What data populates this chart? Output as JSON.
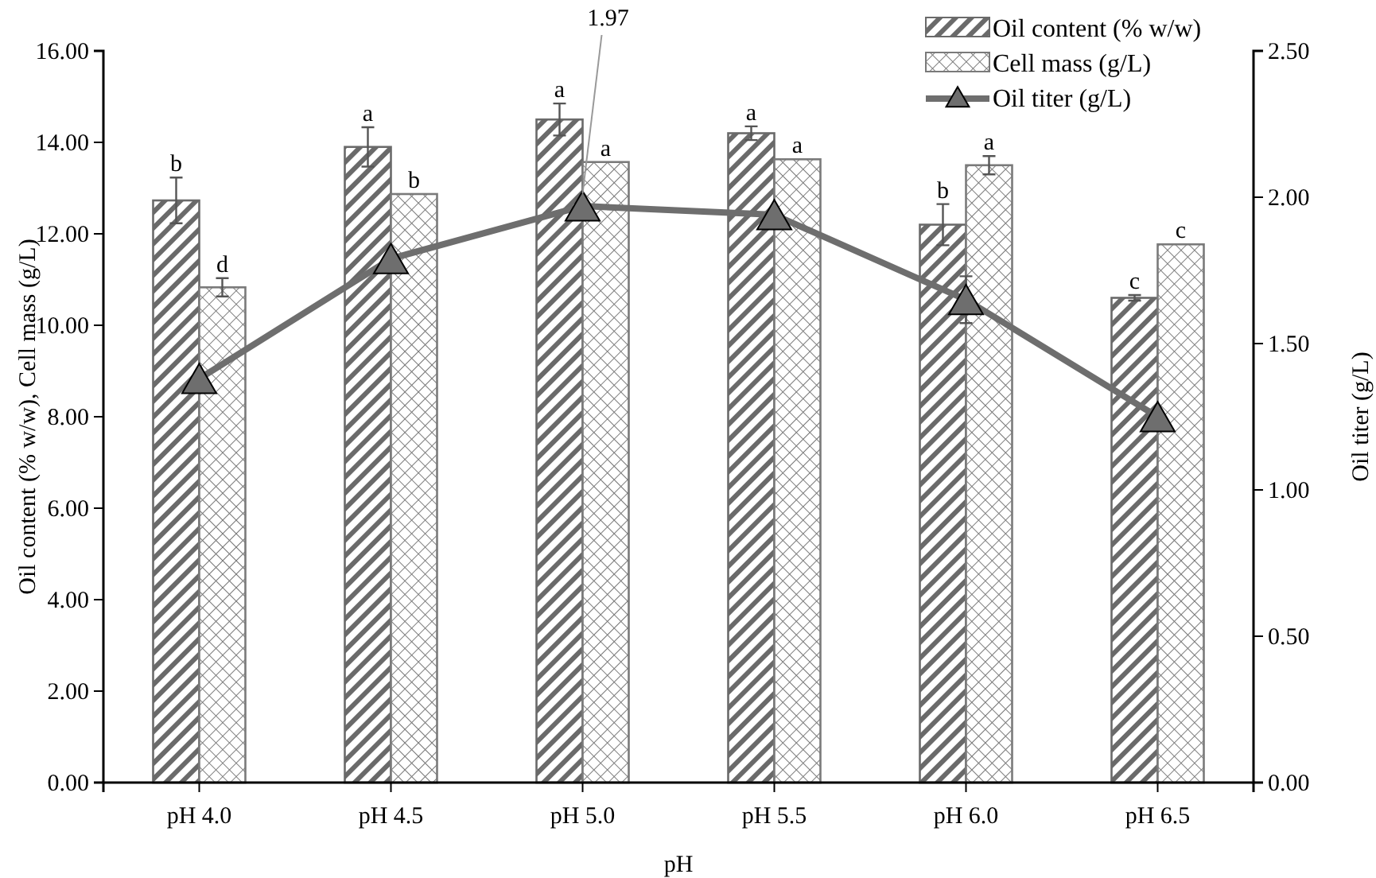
{
  "chart_data": {
    "type": "bar",
    "xlabel": "pH",
    "ylabel": "Oil content (% w/w), Cell mass (g/L)",
    "y2label": "Oil titer (g/L)",
    "categories": [
      "pH 4.0",
      "pH 4.5",
      "pH 5.0",
      "pH 5.5",
      "pH 6.0",
      "pH 6.5"
    ],
    "series": [
      {
        "name": "Oil content (% w/w)",
        "color": "#6a6a6a",
        "values": [
          12.73,
          13.9,
          14.5,
          14.2,
          12.2,
          10.6
        ],
        "errors": [
          0.5,
          0.43,
          0.35,
          0.15,
          0.45,
          0.06
        ],
        "value_labels": [
          "b",
          "a",
          "a",
          "a",
          "b",
          "c"
        ]
      },
      {
        "name": "Cell mass (g/L)",
        "color": "#7a7a7a",
        "values": [
          10.83,
          12.87,
          13.57,
          13.63,
          13.5,
          11.77
        ],
        "errors": [
          0.2,
          null,
          null,
          null,
          0.2,
          null
        ],
        "value_labels": [
          "d",
          "b",
          "a",
          "a",
          "a",
          "c"
        ]
      },
      {
        "name": "Oil titer (g/L)",
        "type": "line",
        "axis": "y2",
        "color": "#6e6e6e",
        "marker": "triangle",
        "values": [
          1.38,
          1.79,
          1.97,
          1.94,
          1.65,
          1.25
        ],
        "errors": [
          null,
          null,
          null,
          null,
          0.08,
          null
        ],
        "value_labels": [
          null,
          null,
          "1.97",
          null,
          null,
          null
        ]
      }
    ],
    "ylim": [
      0,
      16
    ],
    "yticks": [
      {
        "value": 0,
        "label": "0.00"
      },
      {
        "value": 2,
        "label": "2.00"
      },
      {
        "value": 4,
        "label": "4.00"
      },
      {
        "value": 6,
        "label": "6.00"
      },
      {
        "value": 8,
        "label": "8.00"
      },
      {
        "value": 10,
        "label": "10.00"
      },
      {
        "value": 12,
        "label": "12.00"
      },
      {
        "value": 14,
        "label": "14.00"
      },
      {
        "value": 16,
        "label": "16.00"
      }
    ],
    "y2lim": [
      0,
      2.5
    ],
    "y2ticks": [
      {
        "value": 0,
        "label": "0.00"
      },
      {
        "value": 0.5,
        "label": "0.50"
      },
      {
        "value": 1,
        "label": "1.00"
      },
      {
        "value": 1.5,
        "label": "1.50"
      },
      {
        "value": 2,
        "label": "2.00"
      },
      {
        "value": 2.5,
        "label": "2.50"
      }
    ],
    "legend": "top right",
    "grid": false
  }
}
